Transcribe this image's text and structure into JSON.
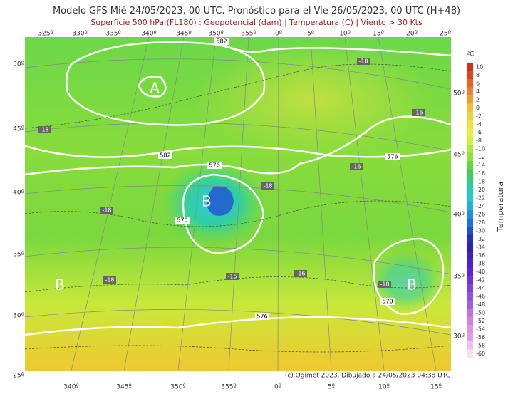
{
  "header": {
    "title_prefix": "Modelo GFS Mié 24/05/2023, 00 UTC. Pronóstico para el ",
    "title_highlight": "Vie 26/05/2023, 00 UTC",
    "title_suffix": " (H+48)",
    "subtitle": "Superficie 500 hPa (FL180) : Geopotencial (dam) | Temperatura (C) | Viento > 30 Kts"
  },
  "axes": {
    "top_lon": [
      "325º",
      "330º",
      "335º",
      "340º",
      "345º",
      "350º",
      "355º",
      "0º",
      "5º",
      "10º",
      "15º",
      "20º",
      "25º"
    ],
    "bottom_lon": [
      "340º",
      "345º",
      "350º",
      "355º",
      "0º",
      "5º",
      "10º",
      "15º"
    ],
    "left_lat": [
      "50º",
      "45º",
      "40º",
      "35º",
      "30º",
      "25º"
    ],
    "right_lat": [
      "50º",
      "45º",
      "40º",
      "35º",
      "30º"
    ]
  },
  "colorbar": {
    "unit": "ºC",
    "title": "Temperatura",
    "labels": [
      "10",
      "8",
      "6",
      "4",
      "2",
      "0",
      "-2",
      "-4",
      "-6",
      "-8",
      "-10",
      "-12",
      "-14",
      "-16",
      "-18",
      "-20",
      "-22",
      "-24",
      "-26",
      "-28",
      "-30",
      "-32",
      "-34",
      "-36",
      "-38",
      "-40",
      "-42",
      "-44",
      "-46",
      "-48",
      "-50",
      "-52",
      "-54",
      "-56",
      "-58",
      "-60"
    ]
  },
  "map": {
    "pressure_centers": [
      "A",
      "B",
      "B",
      "B"
    ],
    "contour_labels": [
      "582",
      "582",
      "576",
      "576",
      "570",
      "576",
      "570"
    ],
    "temperature_labels": [
      "-18",
      "-18",
      "-16",
      "-18",
      "-16",
      "-18",
      "-16",
      "-16",
      "-18",
      "-18"
    ]
  },
  "footer": {
    "credit": "(c) Ogimet 2023. Dibujado a 24/05/2023 04:38 UTC"
  }
}
